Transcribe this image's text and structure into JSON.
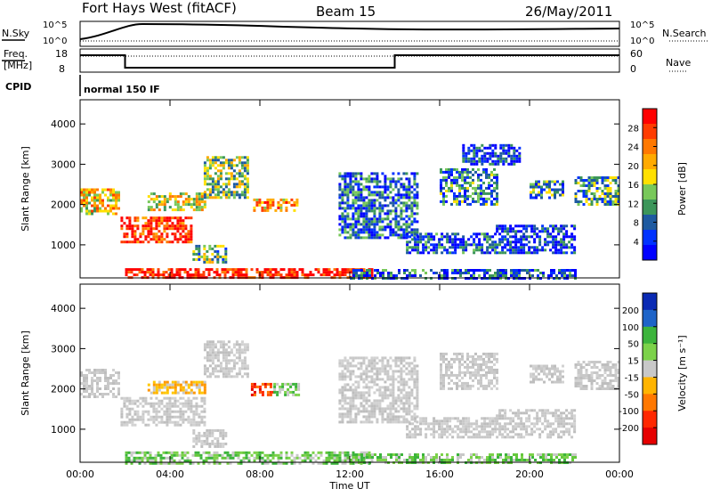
{
  "header": {
    "station": "Fort Hays West (fitACF)",
    "beam": "Beam 15",
    "date": "26/May/2011"
  },
  "top_panels": {
    "nsky_label": "N.Sky",
    "nsky_ticks": [
      "10^5",
      "10^0"
    ],
    "nsearch_label": "N.Search",
    "nsearch_ticks": [
      "10^5",
      "10^0"
    ],
    "freq_label_1": "Freq.",
    "freq_label_2": "[MHz]",
    "freq_ticks": [
      "18",
      "8"
    ],
    "nave_label": "Nave",
    "nave_ticks": [
      "60",
      "0"
    ],
    "cpid_label": "CPID",
    "cpid_value": "normal 150 IF",
    "freq_steps": [
      {
        "t0": 0.0,
        "t1": 2.0,
        "level": "high"
      },
      {
        "t0": 2.0,
        "t1": 14.0,
        "level": "low"
      },
      {
        "t0": 14.0,
        "t1": 24.0,
        "level": "high"
      }
    ]
  },
  "chart_data": [
    {
      "type": "heatmap",
      "name": "power",
      "ylabel": "Slant Range [km]",
      "xlabel": "",
      "x_ticks": [
        "00:00",
        "04:00",
        "08:00",
        "12:00",
        "16:00",
        "20:00",
        "00:00"
      ],
      "y_ticks": [
        "1000",
        "2000",
        "3000",
        "4000"
      ],
      "y_tick_values": [
        1000,
        2000,
        3000,
        4000
      ],
      "ylim": [
        180,
        4600
      ],
      "xlim": [
        0,
        24
      ],
      "colorbar_label": "Power [dB]",
      "colorbar_ticks": [
        "28",
        "24",
        "20",
        "16",
        "12",
        "8",
        "4"
      ],
      "colorbar_colors": [
        "#ff0000",
        "#ff3c00",
        "#ff7800",
        "#ffaa00",
        "#ffe000",
        "#78c85a",
        "#3c965a",
        "#1e5aa0",
        "#0032ff",
        "#0000ff"
      ],
      "features": [
        {
          "t0": 0.0,
          "t1": 1.7,
          "r0": 1800,
          "r1": 2400,
          "level": 0.6
        },
        {
          "t0": 1.8,
          "t1": 5.0,
          "r0": 1100,
          "r1": 1700,
          "level": 0.9
        },
        {
          "t0": 3.0,
          "t1": 5.5,
          "r0": 1900,
          "r1": 2300,
          "level": 0.55
        },
        {
          "t0": 5.5,
          "t1": 7.5,
          "r0": 2200,
          "r1": 3200,
          "level": 0.45
        },
        {
          "t0": 7.7,
          "t1": 9.7,
          "r0": 1850,
          "r1": 2150,
          "level": 0.7
        },
        {
          "t0": 5.0,
          "t1": 6.5,
          "r0": 600,
          "r1": 1000,
          "level": 0.4
        },
        {
          "t0": 2.0,
          "t1": 13.0,
          "r0": 180,
          "r1": 420,
          "level": 0.95
        },
        {
          "t0": 11.5,
          "t1": 15.0,
          "r0": 1200,
          "r1": 2800,
          "level": 0.25
        },
        {
          "t0": 14.5,
          "t1": 18.5,
          "r0": 800,
          "r1": 1300,
          "level": 0.2
        },
        {
          "t0": 16.0,
          "t1": 18.5,
          "r0": 2000,
          "r1": 2900,
          "level": 0.3
        },
        {
          "t0": 17.0,
          "t1": 19.5,
          "r0": 3000,
          "r1": 3500,
          "level": 0.15
        },
        {
          "t0": 18.5,
          "t1": 22.0,
          "r0": 800,
          "r1": 1500,
          "level": 0.15
        },
        {
          "t0": 20.0,
          "t1": 21.5,
          "r0": 2200,
          "r1": 2600,
          "level": 0.3
        },
        {
          "t0": 22.0,
          "t1": 24.0,
          "r0": 2000,
          "r1": 2700,
          "level": 0.35
        },
        {
          "t0": 12.0,
          "t1": 22.0,
          "r0": 180,
          "r1": 400,
          "level": 0.2
        }
      ]
    },
    {
      "type": "heatmap",
      "name": "velocity",
      "ylabel": "Slant Range [km]",
      "xlabel": "Time UT",
      "x_ticks": [
        "00:00",
        "04:00",
        "08:00",
        "12:00",
        "16:00",
        "20:00",
        "00:00"
      ],
      "y_ticks": [
        "1000",
        "2000",
        "3000",
        "4000"
      ],
      "y_tick_values": [
        1000,
        2000,
        3000,
        4000
      ],
      "ylim": [
        180,
        4600
      ],
      "xlim": [
        0,
        24
      ],
      "colorbar_label": "Velocity [m s⁻¹]",
      "colorbar_ticks": [
        "200",
        "100",
        "50",
        "15",
        "-15",
        "-50",
        "-100",
        "-200"
      ],
      "colorbar_colors": [
        "#0a2ab4",
        "#1e64c8",
        "#3cb43c",
        "#7cd24a",
        "#c8c8c8",
        "#ffb400",
        "#ff7800",
        "#ff2800",
        "#e60000"
      ],
      "features": [
        {
          "t0": 0.0,
          "t1": 1.7,
          "r0": 1800,
          "r1": 2500,
          "kind": "gray"
        },
        {
          "t0": 1.8,
          "t1": 5.5,
          "r0": 1100,
          "r1": 1800,
          "kind": "gray"
        },
        {
          "t0": 3.0,
          "t1": 5.5,
          "r0": 1900,
          "r1": 2200,
          "kind": "orange"
        },
        {
          "t0": 5.5,
          "t1": 7.5,
          "r0": 2300,
          "r1": 3200,
          "kind": "gray"
        },
        {
          "t0": 7.6,
          "t1": 8.6,
          "r0": 1850,
          "r1": 2150,
          "kind": "red"
        },
        {
          "t0": 8.6,
          "t1": 9.7,
          "r0": 1850,
          "r1": 2150,
          "kind": "green"
        },
        {
          "t0": 5.0,
          "t1": 6.5,
          "r0": 600,
          "r1": 1000,
          "kind": "gray"
        },
        {
          "t0": 2.0,
          "t1": 13.0,
          "r0": 180,
          "r1": 450,
          "kind": "green"
        },
        {
          "t0": 11.5,
          "t1": 15.0,
          "r0": 1200,
          "r1": 2800,
          "kind": "gray"
        },
        {
          "t0": 14.5,
          "t1": 18.5,
          "r0": 800,
          "r1": 1300,
          "kind": "gray"
        },
        {
          "t0": 16.0,
          "t1": 18.5,
          "r0": 2000,
          "r1": 2900,
          "kind": "gray"
        },
        {
          "t0": 18.5,
          "t1": 22.0,
          "r0": 800,
          "r1": 1500,
          "kind": "gray"
        },
        {
          "t0": 20.0,
          "t1": 21.5,
          "r0": 2200,
          "r1": 2600,
          "kind": "gray"
        },
        {
          "t0": 22.0,
          "t1": 24.0,
          "r0": 2000,
          "r1": 2700,
          "kind": "gray"
        },
        {
          "t0": 12.0,
          "t1": 22.0,
          "r0": 180,
          "r1": 400,
          "kind": "green"
        }
      ]
    }
  ]
}
